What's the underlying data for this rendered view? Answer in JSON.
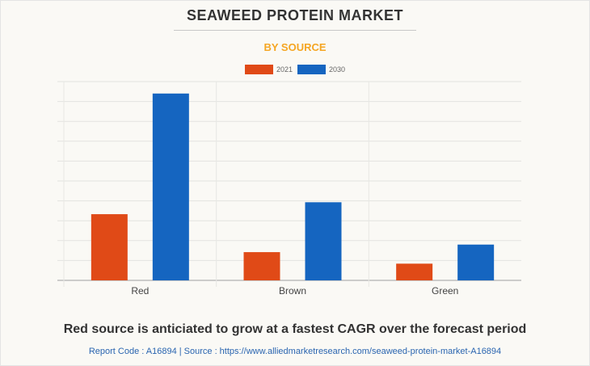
{
  "header": {
    "title": "SEAWEED PROTEIN MARKET",
    "subtitle": "BY SOURCE"
  },
  "footer": {
    "caption": "Red source is anticiated to grow at a fastest CAGR over the forecast period",
    "source_line": "Report Code : A16894  |  Source : https://www.alliedmarketresearch.com/seaweed-protein-market-A16894"
  },
  "chart_data": {
    "type": "bar",
    "title": "SEAWEED PROTEIN MARKET",
    "subtitle": "BY SOURCE",
    "xlabel": "",
    "ylabel": "",
    "categories": [
      "Red",
      "Brown",
      "Green"
    ],
    "series": [
      {
        "name": "2021",
        "color": "#e04a17",
        "values": [
          3.33,
          1.42,
          0.84
        ]
      },
      {
        "name": "2030",
        "color": "#1565c0",
        "values": [
          9.4,
          3.93,
          1.8
        ]
      }
    ],
    "ylim": [
      0,
      10
    ],
    "y_ticks_labeled": false,
    "grid": true,
    "legend": "top-center"
  }
}
